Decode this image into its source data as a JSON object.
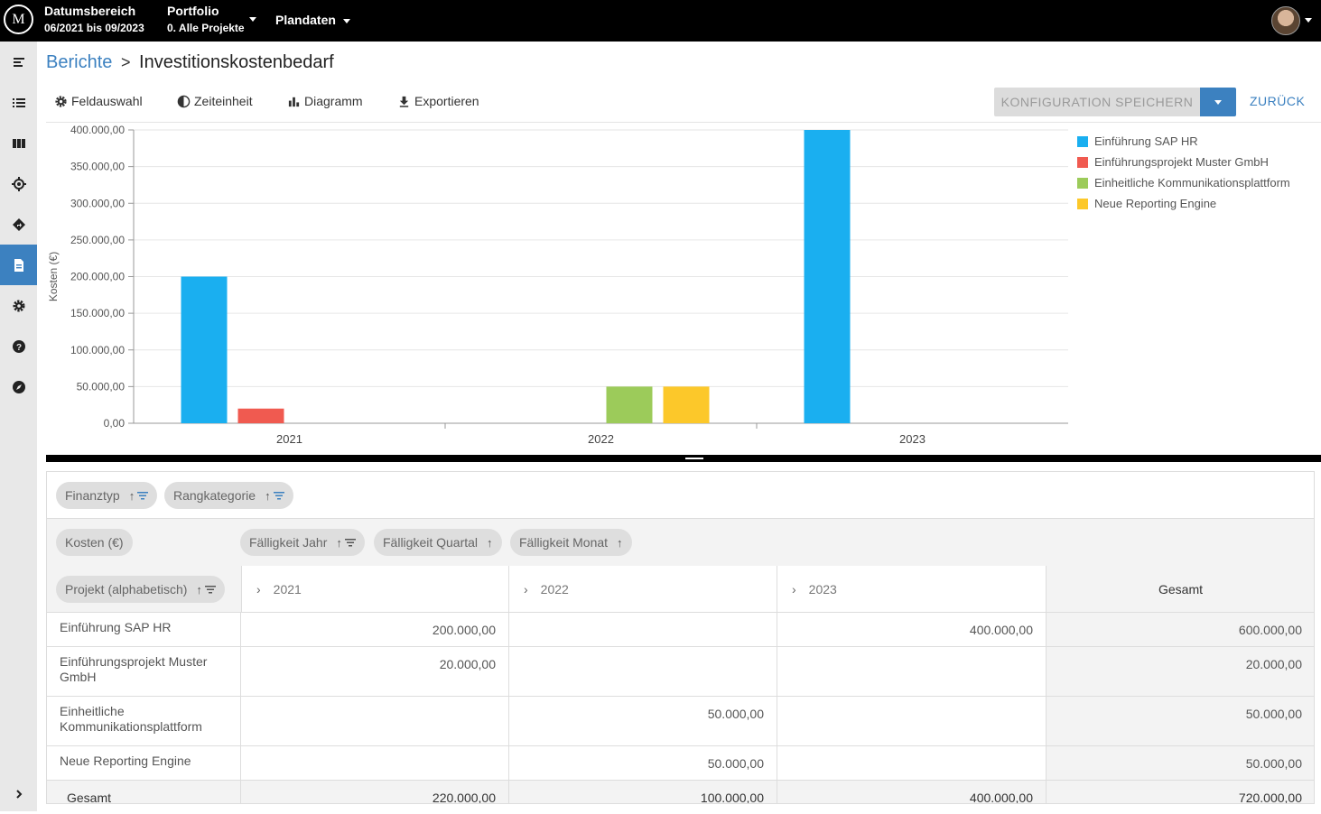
{
  "topbar": {
    "logo_text": "M",
    "date_label": "Datumsbereich",
    "date_value": "06/2021 bis 09/2023",
    "portfolio_label": "Portfolio",
    "portfolio_value": "0. Alle Projekte",
    "plan_label": "Plandaten"
  },
  "breadcrumb": {
    "link": "Berichte",
    "separator": ">",
    "title": "Investitionskostenbedarf"
  },
  "toolbar": {
    "field_label": "Feldauswahl",
    "time_label": "Zeiteinheit",
    "chart_label": "Diagramm",
    "export_label": "Exportieren",
    "save_label": "KONFIGURATION SPEICHERN",
    "back_label": "ZURÜCK"
  },
  "colors": {
    "accent": "#3c81c0",
    "sap": "#1aaff0",
    "muster": "#f05a50",
    "kommunikation": "#9ccb5a",
    "reporting": "#fcc82a"
  },
  "chart_data": {
    "type": "bar",
    "categories": [
      "2021",
      "2022",
      "2023"
    ],
    "ylabel": "Kosten (€)",
    "ylim": [
      0,
      400000
    ],
    "yticks": [
      "0,00",
      "50.000,00",
      "100.000,00",
      "150.000,00",
      "200.000,00",
      "250.000,00",
      "300.000,00",
      "350.000,00",
      "400.000,00"
    ],
    "grid": true,
    "legend_position": "right",
    "series": [
      {
        "name": "Einführung SAP HR",
        "color": "#1aaff0",
        "values": [
          200000,
          0,
          400000
        ]
      },
      {
        "name": "Einführungsprojekt Muster GmbH",
        "color": "#f05a50",
        "values": [
          20000,
          0,
          0
        ]
      },
      {
        "name": "Einheitliche Kommunikationsplattform",
        "color": "#9ccb5a",
        "values": [
          0,
          50000,
          0
        ]
      },
      {
        "name": "Neue Reporting Engine",
        "color": "#fcc82a",
        "values": [
          0,
          50000,
          0
        ]
      }
    ]
  },
  "pivot": {
    "filter_chips": [
      "Finanztyp",
      "Rangkategorie"
    ],
    "value_chip": "Kosten (€)",
    "column_chips": [
      "Fälligkeit Jahr",
      "Fälligkeit Quartal",
      "Fälligkeit Monat"
    ],
    "row_chip": "Projekt (alphabetisch)",
    "sort_arrow": "↑",
    "expand_glyph": "›",
    "columns": [
      "2021",
      "2022",
      "2023"
    ],
    "total_label": "Gesamt",
    "rows": [
      {
        "name": "Einführung SAP HR",
        "values": [
          "200.000,00",
          "",
          "400.000,00"
        ],
        "total": "600.000,00"
      },
      {
        "name": "Einführungsprojekt Muster GmbH",
        "values": [
          "20.000,00",
          "",
          ""
        ],
        "total": "20.000,00"
      },
      {
        "name": "Einheitliche Kommunikationsplattform",
        "values": [
          "",
          "50.000,00",
          ""
        ],
        "total": "50.000,00"
      },
      {
        "name": "Neue Reporting Engine",
        "values": [
          "",
          "50.000,00",
          ""
        ],
        "total": "50.000,00"
      }
    ],
    "totals": {
      "values": [
        "220.000,00",
        "100.000,00",
        "400.000,00"
      ],
      "total": "720.000,00"
    }
  }
}
